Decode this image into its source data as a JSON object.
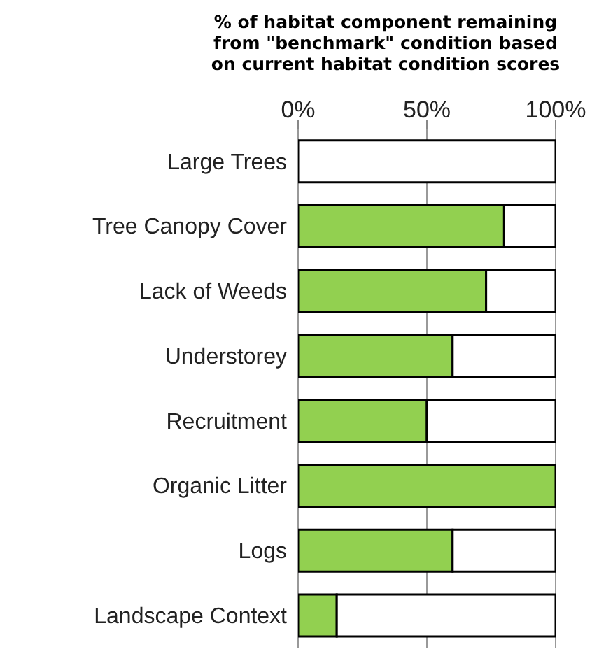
{
  "chart_data": {
    "type": "bar",
    "orientation": "horizontal",
    "stacked": true,
    "title": "% of habitat component remaining from \"benchmark\" condition based on current habitat condition scores",
    "categories": [
      "Large Trees",
      "Tree Canopy Cover",
      "Lack of Weeds",
      "Understorey",
      "Recruitment",
      "Organic Litter",
      "Logs",
      "Landscape Context"
    ],
    "series": [
      {
        "color": "#92d050",
        "values": [
          0,
          80,
          73,
          60,
          50,
          100,
          60,
          15
        ]
      },
      {
        "color": "#ffffff",
        "values": [
          100,
          20,
          27,
          40,
          50,
          0,
          40,
          85
        ]
      }
    ],
    "xlim": [
      0,
      100
    ],
    "xticks": [
      {
        "value": 0,
        "label": "0%"
      },
      {
        "value": 50,
        "label": "50%"
      },
      {
        "value": 100,
        "label": "100%"
      }
    ],
    "grid": "x"
  }
}
